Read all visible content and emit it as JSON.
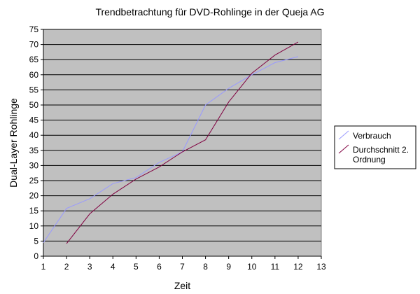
{
  "chart_data": {
    "type": "line",
    "title": "Trendbetrachtung für DVD-Rohlinge in der Queja AG",
    "xlabel": "Zeit",
    "ylabel": "Dual-Layer Rohlinge",
    "xlim": [
      1,
      13
    ],
    "ylim": [
      0,
      75
    ],
    "xticks": [
      1,
      2,
      3,
      4,
      5,
      6,
      7,
      8,
      9,
      10,
      11,
      12,
      13
    ],
    "yticks": [
      0,
      5,
      10,
      15,
      20,
      25,
      30,
      35,
      40,
      45,
      50,
      55,
      60,
      65,
      70,
      75
    ],
    "grid": true,
    "legend_position": "right",
    "series": [
      {
        "name": "Verbrauch",
        "color": "#9999ff",
        "x": [
          1,
          2,
          3,
          4,
          5,
          6,
          7,
          8,
          9,
          10,
          11,
          12
        ],
        "y": [
          4.5,
          15.8,
          19,
          24,
          26,
          31,
          34.5,
          50,
          55.5,
          60,
          64,
          66
        ]
      },
      {
        "name": "Durchschnitt 2. Ordnung",
        "color": "#800040",
        "x": [
          2,
          3,
          4,
          5,
          6,
          7,
          8,
          9,
          10,
          11,
          12
        ],
        "y": [
          4.2,
          14,
          20.5,
          25.5,
          29.5,
          34.5,
          38.5,
          51,
          60.5,
          66.5,
          70.8
        ]
      }
    ]
  }
}
